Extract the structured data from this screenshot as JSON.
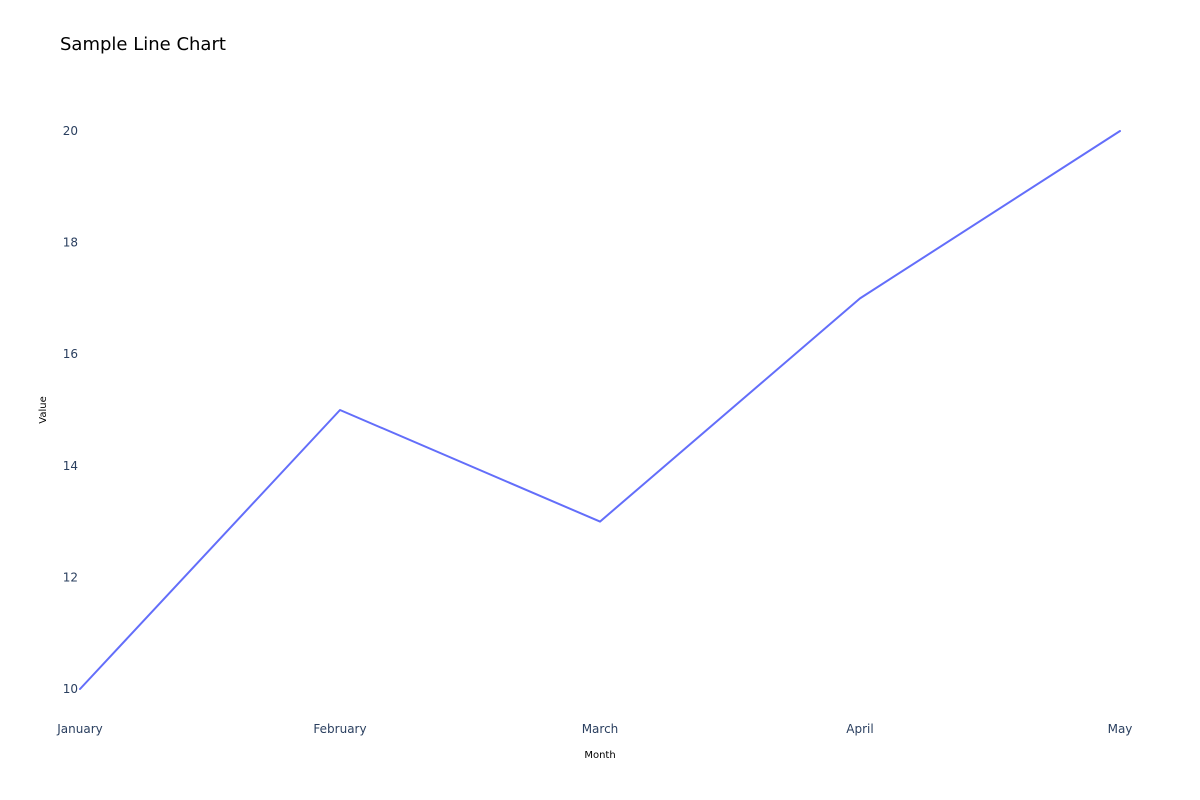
{
  "chart_data": {
    "type": "line",
    "title": "Sample Line Chart",
    "xlabel": "Month",
    "ylabel": "Value",
    "categories": [
      "January",
      "February",
      "March",
      "April",
      "May"
    ],
    "series": [
      {
        "values": [
          10,
          15,
          13,
          17,
          20
        ],
        "color": "#636efa"
      }
    ],
    "ylim": [
      10,
      20
    ],
    "yticks": [
      10,
      12,
      14,
      16,
      18,
      20
    ],
    "grid": false,
    "legend": "none"
  }
}
